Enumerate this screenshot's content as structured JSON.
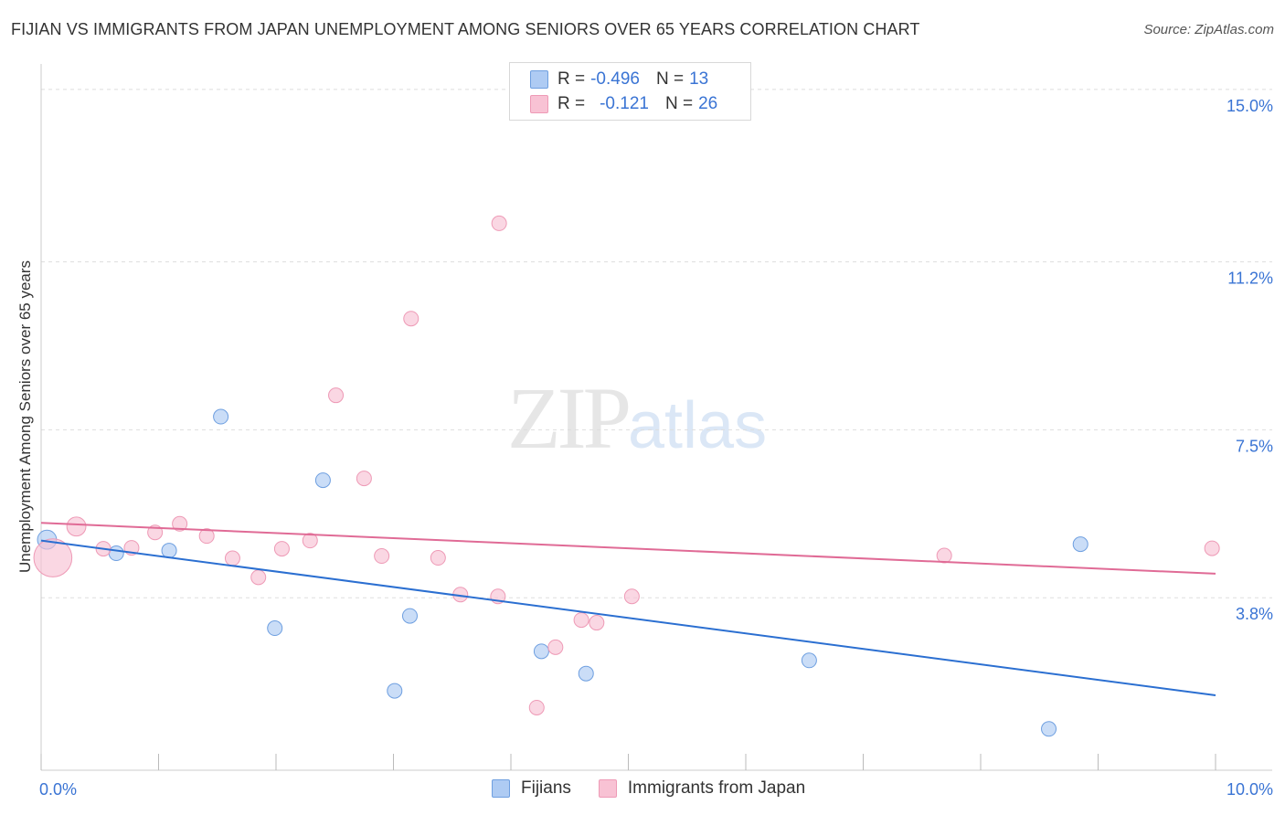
{
  "title": "FIJIAN VS IMMIGRANTS FROM JAPAN UNEMPLOYMENT AMONG SENIORS OVER 65 YEARS CORRELATION CHART",
  "source": "Source: ZipAtlas.com",
  "watermark": {
    "zip": "ZIP",
    "atlas": "atlas"
  },
  "legend": {
    "r_label": "R =",
    "n_label": "N =",
    "rows": [
      {
        "name": "Fijians",
        "r": "-0.496",
        "n": "13"
      },
      {
        "name": "Immigrants from Japan",
        "r": "-0.121",
        "n": "26"
      }
    ]
  },
  "colors": {
    "fijians_fill": "#aecbf3",
    "fijians_stroke": "#6e9fe0",
    "fijians_line": "#2b6fd1",
    "japan_fill": "#f8c2d4",
    "japan_stroke": "#ee9ab6",
    "japan_line": "#e06b96",
    "axis_text": "#3a74d4",
    "grid": "#dddddd"
  },
  "chart_data": {
    "type": "scatter",
    "title": "FIJIAN VS IMMIGRANTS FROM JAPAN UNEMPLOYMENT AMONG SENIORS OVER 65 YEARS CORRELATION CHART",
    "xlabel": "",
    "ylabel": "Unemployment Among Seniors over 65 years",
    "xlim": [
      0,
      10
    ],
    "ylim": [
      0,
      15.4
    ],
    "x_tick_labels": [
      {
        "value": 0,
        "label": "0.0%"
      },
      {
        "value": 10,
        "label": "10.0%"
      }
    ],
    "y_tick_labels": [
      {
        "value": 3.8,
        "label": "3.8%"
      },
      {
        "value": 7.5,
        "label": "7.5%"
      },
      {
        "value": 11.2,
        "label": "11.2%"
      },
      {
        "value": 15.0,
        "label": "15.0%"
      }
    ],
    "series": [
      {
        "name": "Fijians",
        "r": -0.496,
        "n": 13,
        "points": [
          {
            "x": 0.05,
            "y": 5.08,
            "size": 1.3
          },
          {
            "x": 0.64,
            "y": 4.78,
            "size": 1
          },
          {
            "x": 1.09,
            "y": 4.84,
            "size": 1
          },
          {
            "x": 1.53,
            "y": 7.79,
            "size": 1
          },
          {
            "x": 1.99,
            "y": 3.13,
            "size": 1
          },
          {
            "x": 2.4,
            "y": 6.39,
            "size": 1
          },
          {
            "x": 3.01,
            "y": 1.75,
            "size": 1
          },
          {
            "x": 3.14,
            "y": 3.4,
            "size": 1
          },
          {
            "x": 4.26,
            "y": 2.62,
            "size": 1
          },
          {
            "x": 4.64,
            "y": 2.13,
            "size": 1
          },
          {
            "x": 6.54,
            "y": 2.42,
            "size": 1
          },
          {
            "x": 8.58,
            "y": 0.91,
            "size": 1
          },
          {
            "x": 8.85,
            "y": 4.98,
            "size": 1
          }
        ],
        "trend": {
          "x1": 0.0,
          "y1": 5.06,
          "x2": 10.0,
          "y2": 1.65
        }
      },
      {
        "name": "Immigrants from Japan",
        "r": -0.121,
        "n": 26,
        "points": [
          {
            "x": 0.1,
            "y": 4.68,
            "size": 2.6
          },
          {
            "x": 0.3,
            "y": 5.37,
            "size": 1.3
          },
          {
            "x": 0.53,
            "y": 4.88,
            "size": 1
          },
          {
            "x": 0.77,
            "y": 4.9,
            "size": 1
          },
          {
            "x": 0.97,
            "y": 5.24,
            "size": 1
          },
          {
            "x": 1.18,
            "y": 5.43,
            "size": 1
          },
          {
            "x": 1.41,
            "y": 5.16,
            "size": 1
          },
          {
            "x": 1.63,
            "y": 4.67,
            "size": 1
          },
          {
            "x": 1.85,
            "y": 4.25,
            "size": 1
          },
          {
            "x": 2.05,
            "y": 4.88,
            "size": 1
          },
          {
            "x": 2.29,
            "y": 5.06,
            "size": 1
          },
          {
            "x": 2.51,
            "y": 8.26,
            "size": 1
          },
          {
            "x": 2.75,
            "y": 6.43,
            "size": 1
          },
          {
            "x": 2.9,
            "y": 4.72,
            "size": 1
          },
          {
            "x": 3.15,
            "y": 9.95,
            "size": 1
          },
          {
            "x": 3.38,
            "y": 4.68,
            "size": 1
          },
          {
            "x": 3.57,
            "y": 3.87,
            "size": 1
          },
          {
            "x": 3.89,
            "y": 3.83,
            "size": 1
          },
          {
            "x": 3.9,
            "y": 12.05,
            "size": 1
          },
          {
            "x": 4.22,
            "y": 1.38,
            "size": 1
          },
          {
            "x": 4.38,
            "y": 2.71,
            "size": 1
          },
          {
            "x": 4.6,
            "y": 3.31,
            "size": 1
          },
          {
            "x": 4.73,
            "y": 3.25,
            "size": 1
          },
          {
            "x": 5.03,
            "y": 3.83,
            "size": 1
          },
          {
            "x": 7.69,
            "y": 4.73,
            "size": 1
          },
          {
            "x": 9.97,
            "y": 4.89,
            "size": 1
          }
        ],
        "trend": {
          "x1": 0.0,
          "y1": 5.45,
          "x2": 10.0,
          "y2": 4.33
        }
      }
    ]
  }
}
